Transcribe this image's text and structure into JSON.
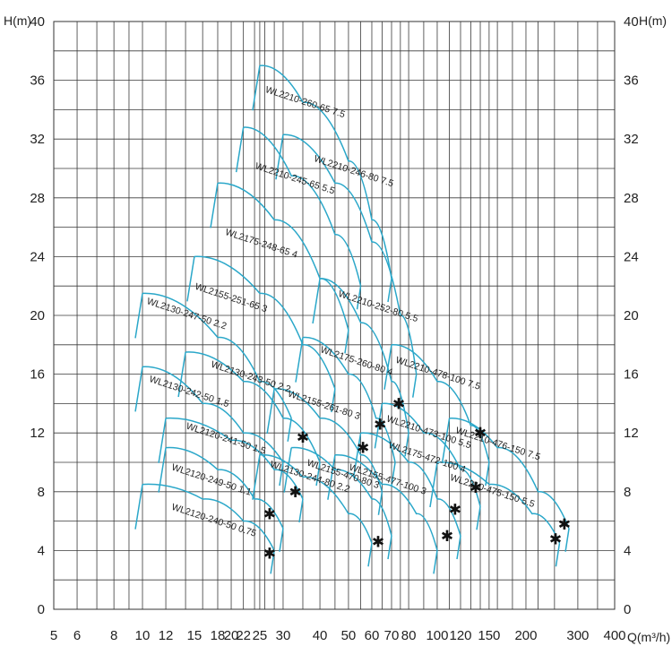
{
  "chart_data": {
    "type": "line",
    "title": "",
    "xlabel": "Q(m³/h)",
    "ylabel_left": "H(m)",
    "ylabel_right": "H(m)",
    "xscale": "log",
    "xlim": [
      5,
      400
    ],
    "ylim": [
      0,
      40
    ],
    "grid": true,
    "x_ticks": [
      5,
      6,
      8,
      10,
      12,
      15,
      18,
      20,
      22,
      25,
      30,
      40,
      50,
      60,
      70,
      80,
      100,
      120,
      150,
      200,
      300,
      400
    ],
    "y_ticks": [
      0,
      4,
      8,
      12,
      16,
      20,
      24,
      28,
      32,
      36,
      40
    ],
    "curve_color": "#2aa7c9",
    "series": [
      {
        "name": "WL2210-260-65 7.5",
        "label_at": [
          26,
          35.2
        ],
        "points": [
          [
            25,
            37
          ],
          [
            35,
            34.5
          ],
          [
            50,
            30.5
          ],
          [
            60,
            26.5
          ],
          [
            70,
            22.5
          ]
        ]
      },
      {
        "name": "WL2210-246-80 7.5",
        "label_at": [
          38,
          30.5
        ],
        "points": [
          [
            30,
            32.3
          ],
          [
            45,
            29
          ],
          [
            60,
            25
          ],
          [
            75,
            20
          ],
          [
            85,
            16
          ]
        ]
      },
      {
        "name": "WL2210-245-65 5.5",
        "label_at": [
          24,
          30
        ],
        "points": [
          [
            22,
            32.8
          ],
          [
            32,
            29.5
          ],
          [
            45,
            25.5
          ],
          [
            55,
            22
          ]
        ]
      },
      {
        "name": "WL2175-248-65 4",
        "label_at": [
          19,
          25.5
        ],
        "points": [
          [
            18,
            29
          ],
          [
            28,
            26.5
          ],
          [
            40,
            22.5
          ],
          [
            50,
            19
          ]
        ]
      },
      {
        "name": "WL2155-251-65 3",
        "label_at": [
          15,
          21.8
        ],
        "points": [
          [
            15,
            24
          ],
          [
            25,
            21.5
          ],
          [
            35,
            18
          ],
          [
            45,
            15
          ]
        ]
      },
      {
        "name": "WL2130-247-50 2.2",
        "label_at": [
          10.3,
          20.8
        ],
        "points": [
          [
            10,
            21.5
          ],
          [
            18,
            18.5
          ],
          [
            25,
            15.5
          ],
          [
            32,
            13
          ]
        ]
      },
      {
        "name": "WL2130-243-50 2.2",
        "label_at": [
          17,
          16.5
        ],
        "points": [
          [
            14,
            17.5
          ],
          [
            22,
            15.5
          ],
          [
            30,
            13
          ],
          [
            40,
            10
          ]
        ]
      },
      {
        "name": "WL2130-242-50 1.5",
        "label_at": [
          10.5,
          15.5
        ],
        "points": [
          [
            10,
            16.5
          ],
          [
            16,
            14
          ],
          [
            22,
            12
          ],
          [
            30,
            10
          ]
        ]
      },
      {
        "name": "WL2120-241-50 1.5",
        "label_at": [
          14,
          12.3
        ],
        "points": [
          [
            12,
            13
          ],
          [
            20,
            11.5
          ],
          [
            28,
            9.5
          ],
          [
            35,
            7.5
          ]
        ]
      },
      {
        "name": "WL2120-249-50 1.1",
        "label_at": [
          12.5,
          9.5
        ],
        "points": [
          [
            12,
            11
          ],
          [
            18,
            9.5
          ],
          [
            24,
            7.5
          ],
          [
            30,
            5.5
          ]
        ]
      },
      {
        "name": "WL2120-240-50 0.75",
        "label_at": [
          12.5,
          6.8
        ],
        "points": [
          [
            10,
            8.5
          ],
          [
            16,
            7.5
          ],
          [
            22,
            6
          ],
          [
            28,
            4
          ]
        ]
      },
      {
        "name": "WL2210-252-80 5.5",
        "label_at": [
          46,
          21.3
        ],
        "points": [
          [
            40,
            22.5
          ],
          [
            55,
            19.5
          ],
          [
            70,
            15.5
          ],
          [
            80,
            12
          ]
        ]
      },
      {
        "name": "WL2175-260-80 4",
        "label_at": [
          40,
          17.5
        ],
        "points": [
          [
            35,
            18.5
          ],
          [
            50,
            16
          ],
          [
            62,
            13
          ],
          [
            72,
            10
          ]
        ]
      },
      {
        "name": "WL2155-261-80 3",
        "label_at": [
          31,
          14.5
        ],
        "points": [
          [
            28,
            15
          ],
          [
            40,
            13
          ],
          [
            55,
            10.5
          ],
          [
            65,
            8
          ]
        ]
      },
      {
        "name": "WL2130-244-80 2.2",
        "label_at": [
          27,
          9.7
        ],
        "points": [
          [
            25,
            10.5
          ],
          [
            35,
            9
          ],
          [
            50,
            6.5
          ],
          [
            60,
            4.5
          ]
        ]
      },
      {
        "name": "WL2155-470-80 3",
        "label_at": [
          36,
          9.8
        ],
        "points": [
          [
            32,
            11
          ],
          [
            45,
            9.5
          ],
          [
            60,
            7.5
          ],
          [
            70,
            5
          ]
        ]
      },
      {
        "name": "WL2155-477-100 3",
        "label_at": [
          50,
          9.5
        ],
        "points": [
          [
            45,
            10.5
          ],
          [
            65,
            8.5
          ],
          [
            85,
            6.5
          ],
          [
            100,
            4
          ]
        ]
      },
      {
        "name": "WL2175-472-100 4",
        "label_at": [
          68,
          11
        ],
        "points": [
          [
            55,
            12
          ],
          [
            80,
            10
          ],
          [
            100,
            7.5
          ],
          [
            120,
            5
          ]
        ]
      },
      {
        "name": "WL2210-473-100 5.5",
        "label_at": [
          67,
          12.8
        ],
        "points": [
          [
            65,
            14
          ],
          [
            90,
            12
          ],
          [
            120,
            9.5
          ],
          [
            140,
            7
          ]
        ]
      },
      {
        "name": "WL2210-478-100 7.5",
        "label_at": [
          72,
          16.8
        ],
        "points": [
          [
            70,
            18
          ],
          [
            100,
            15.5
          ],
          [
            130,
            12.5
          ],
          [
            150,
            10
          ]
        ]
      },
      {
        "name": "WL2210-476-150 7.5",
        "label_at": [
          115,
          12
        ],
        "points": [
          [
            110,
            13
          ],
          [
            160,
            11
          ],
          [
            220,
            8
          ],
          [
            280,
            5.5
          ]
        ]
      },
      {
        "name": "WL2210-475-150 5.5",
        "label_at": [
          110,
          8.8
        ],
        "points": [
          [
            100,
            10
          ],
          [
            150,
            8.5
          ],
          [
            210,
            6.5
          ],
          [
            260,
            4.5
          ]
        ]
      }
    ],
    "points": [
      [
        35,
        11.7
      ],
      [
        33,
        8
      ],
      [
        27,
        6.5
      ],
      [
        27,
        3.8
      ],
      [
        64,
        12.6
      ],
      [
        74,
        14
      ],
      [
        56,
        11
      ],
      [
        63,
        4.6
      ],
      [
        108,
        5
      ],
      [
        115,
        6.8
      ],
      [
        140,
        12
      ],
      [
        135,
        8.3
      ],
      [
        270,
        5.8
      ],
      [
        252,
        4.8
      ]
    ]
  }
}
